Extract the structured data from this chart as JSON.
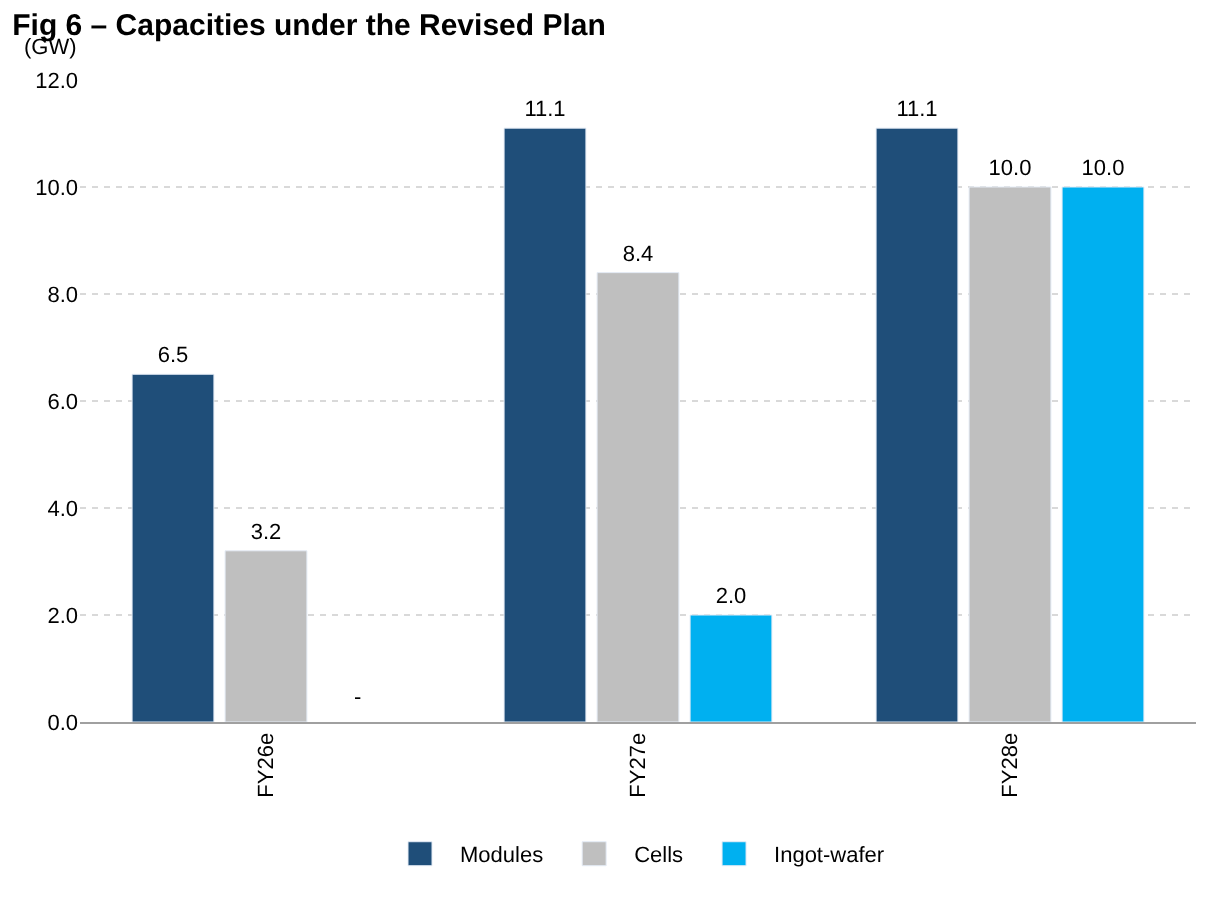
{
  "chart_data": {
    "type": "bar",
    "title": "Fig 6 – Capacities under the Revised Plan",
    "ylabel": "(GW)",
    "categories": [
      "FY26e",
      "FY27e",
      "FY28e"
    ],
    "series": [
      {
        "name": "Modules",
        "color": "#1f4e79",
        "values": [
          6.5,
          11.1,
          11.1
        ],
        "value_labels": [
          "6.5",
          "11.1",
          "11.1"
        ]
      },
      {
        "name": "Cells",
        "color": "#bfbfbf",
        "values": [
          3.2,
          8.4,
          10.0
        ],
        "value_labels": [
          "3.2",
          "8.4",
          "10.0"
        ]
      },
      {
        "name": "Ingot-wafer",
        "color": "#00b0f0",
        "values": [
          null,
          2.0,
          10.0
        ],
        "value_labels": [
          "-",
          "2.0",
          "10.0"
        ]
      }
    ],
    "ylim": [
      0,
      12
    ],
    "yticks": [
      {
        "value": 0,
        "label": "0.0"
      },
      {
        "value": 2,
        "label": "2.0"
      },
      {
        "value": 4,
        "label": "4.0"
      },
      {
        "value": 6,
        "label": "6.0"
      },
      {
        "value": 8,
        "label": "8.0"
      },
      {
        "value": 10,
        "label": "10.0"
      },
      {
        "value": 12,
        "label": "12.0"
      }
    ],
    "grid": "y",
    "legend": "bottom"
  }
}
